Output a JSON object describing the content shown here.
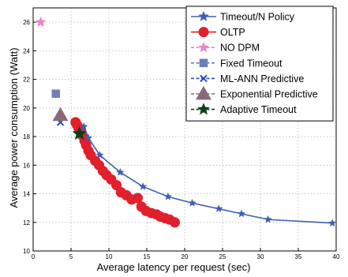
{
  "chart_data": {
    "type": "scatter",
    "title": "",
    "xlabel": "Average latency per request (sec)",
    "ylabel": "Average power consumption (Watt)",
    "xlim": [
      0,
      40
    ],
    "ylim": [
      10,
      27
    ],
    "x_ticks": [
      0,
      5,
      10,
      15,
      20,
      25,
      30,
      35,
      40
    ],
    "y_ticks": [
      10,
      12,
      14,
      16,
      18,
      20,
      22,
      24,
      26
    ],
    "x_tick_labels": [
      "0",
      "5",
      "10",
      "15",
      "20",
      "25",
      "30",
      "35",
      "40"
    ],
    "y_tick_labels": [
      "10",
      "12",
      "14",
      "16",
      "18",
      "20",
      "22",
      "24",
      "26"
    ],
    "grid": true,
    "legend_position": "top-right",
    "series": [
      {
        "name": "Timeout/N Policy",
        "color": "#3f5fb0",
        "marker": "star",
        "line": true,
        "x": [
          6.2,
          6.7,
          7.3,
          8.8,
          11.5,
          14.5,
          17.8,
          21.0,
          24.5,
          27.5,
          31.0,
          39.5
        ],
        "y": [
          18.3,
          18.7,
          17.9,
          16.7,
          15.5,
          14.5,
          13.8,
          13.35,
          12.95,
          12.6,
          12.2,
          11.95
        ]
      },
      {
        "name": "OLTP",
        "color": "#e0202c",
        "marker": "circle",
        "line": true,
        "x": [
          5.6,
          5.8,
          6.0,
          6.2,
          6.4,
          6.6,
          6.8,
          7.0,
          7.3,
          7.6,
          8.2,
          8.7,
          9.2,
          9.7,
          10.3,
          11.0,
          11.6,
          12.3,
          13.0,
          13.8,
          14.3,
          14.9,
          15.6,
          16.3,
          16.8,
          17.4,
          18.0,
          18.7
        ],
        "y": [
          19.0,
          18.8,
          18.6,
          18.4,
          18.2,
          18.0,
          17.7,
          17.4,
          17.0,
          16.7,
          16.3,
          16.0,
          15.6,
          15.3,
          15.0,
          14.6,
          14.1,
          13.9,
          13.6,
          13.7,
          13.1,
          12.8,
          12.65,
          12.55,
          12.4,
          12.3,
          12.2,
          12.0
        ]
      },
      {
        "name": "NO DPM",
        "color": "#f080c8",
        "marker": "star",
        "line": false,
        "x": [
          1.0
        ],
        "y": [
          26.0
        ]
      },
      {
        "name": "Fixed Timeout",
        "color": "#6f7fb8",
        "marker": "square",
        "line": false,
        "x": [
          3.0
        ],
        "y": [
          21.0
        ]
      },
      {
        "name": "ML-ANN Predictive",
        "color": "#2a4ac8",
        "marker": "x",
        "line": false,
        "x": [
          3.6
        ],
        "y": [
          19.0
        ]
      },
      {
        "name": "Exponential Predictive",
        "color": "#8a6a7a",
        "marker": "triangle",
        "line": false,
        "x": [
          3.6
        ],
        "y": [
          19.5
        ]
      },
      {
        "name": "Adaptive Timeout",
        "color": "#0c4016",
        "marker": "star",
        "line": false,
        "x": [
          6.1
        ],
        "y": [
          18.2
        ]
      }
    ]
  }
}
